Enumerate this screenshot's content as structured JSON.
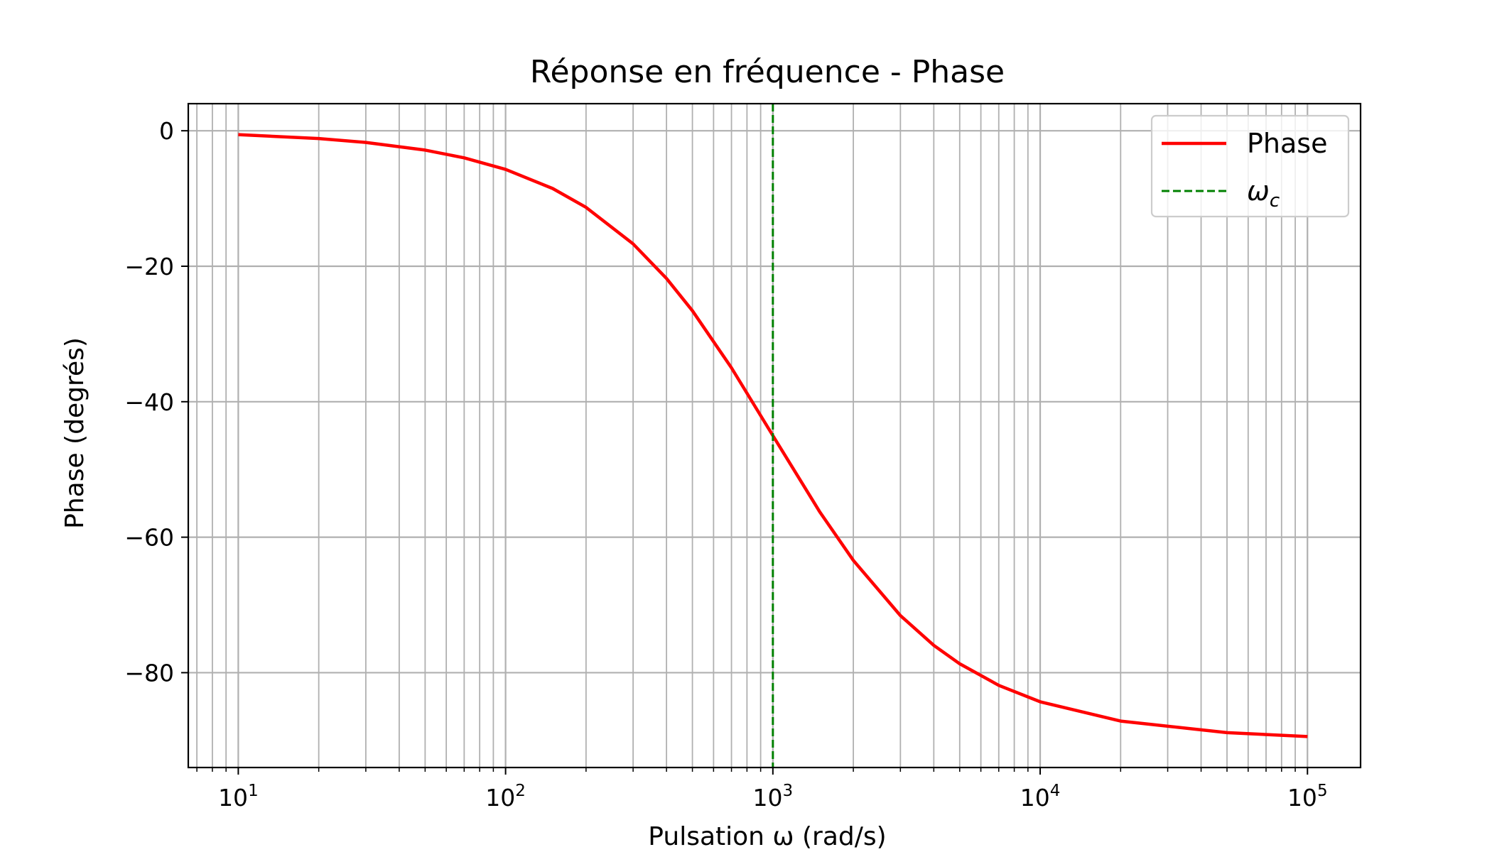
{
  "chart_data": {
    "type": "line",
    "title": "Réponse en fréquence - Phase",
    "xlabel": "Pulsation ω (rad/s)",
    "ylabel": "Phase (degrés)",
    "xscale": "log",
    "xlim": [
      6.5,
      158000
    ],
    "ylim": [
      -94,
      4
    ],
    "grid": "on (major and minor)",
    "legend_position": "top-right",
    "x_ticks": [
      10,
      100,
      1000,
      10000,
      100000
    ],
    "x_tick_labels": [
      {
        "base": "10",
        "exp": "1"
      },
      {
        "base": "10",
        "exp": "2"
      },
      {
        "base": "10",
        "exp": "3"
      },
      {
        "base": "10",
        "exp": "4"
      },
      {
        "base": "10",
        "exp": "5"
      }
    ],
    "y_ticks": [
      0,
      -20,
      -40,
      -60,
      -80
    ],
    "y_tick_labels": [
      "0",
      "−20",
      "−40",
      "−60",
      "−80"
    ],
    "series": [
      {
        "name": "Phase",
        "color": "#ff0000",
        "style": "solid",
        "x": [
          10,
          20,
          30,
          50,
          70,
          100,
          150,
          200,
          300,
          400,
          500,
          700,
          1000,
          1500,
          2000,
          3000,
          4000,
          5000,
          7000,
          10000,
          20000,
          50000,
          100000
        ],
        "y": [
          -0.57,
          -1.15,
          -1.72,
          -2.86,
          -4.0,
          -5.71,
          -8.53,
          -11.31,
          -16.7,
          -21.8,
          -26.57,
          -34.99,
          -45.0,
          -56.31,
          -63.43,
          -71.57,
          -75.96,
          -78.69,
          -81.87,
          -84.29,
          -87.14,
          -88.85,
          -89.43
        ]
      },
      {
        "name": "ωc",
        "legend_label": {
          "base": "ω",
          "sub": "c"
        },
        "color": "#008000",
        "style": "dashed",
        "vline_x": 1000
      }
    ]
  }
}
